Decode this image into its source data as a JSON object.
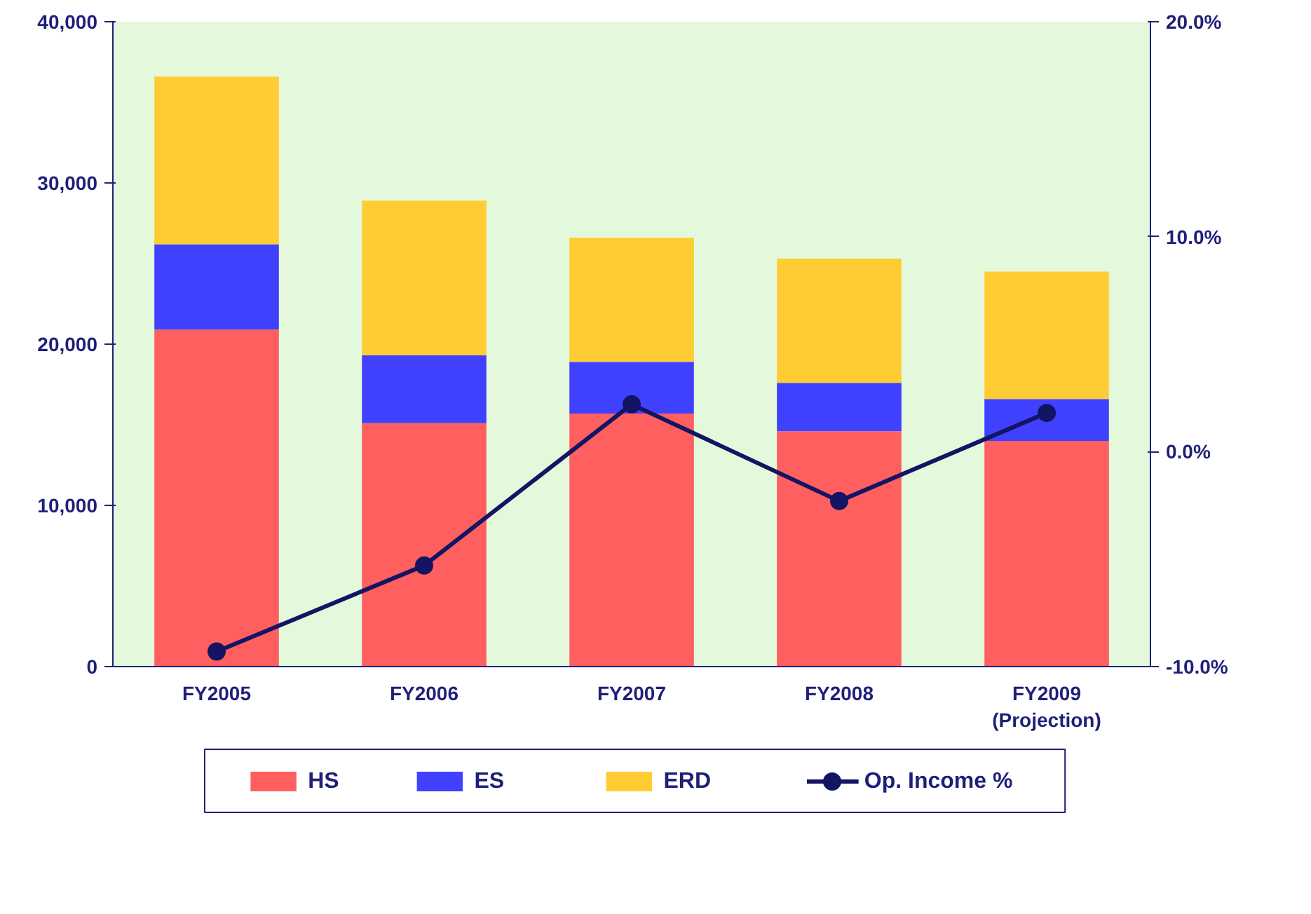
{
  "chart_data": {
    "type": "bar",
    "stacked": true,
    "categories": [
      "FY2005",
      "FY2006",
      "FY2007",
      "FY2008",
      "FY2009\n(Projection)"
    ],
    "series": [
      {
        "name": "HS",
        "color": "#ff5f5f",
        "values": [
          20900,
          15100,
          15700,
          14600,
          14000
        ]
      },
      {
        "name": "ES",
        "color": "#4040ff",
        "values": [
          5300,
          4200,
          3200,
          3000,
          2600
        ]
      },
      {
        "name": "ERD",
        "color": "#ffcc33",
        "values": [
          10400,
          9600,
          7700,
          7700,
          7900
        ]
      },
      {
        "name": "Op. Income %",
        "type": "line",
        "axis": "y2",
        "color": "#141464",
        "marker": "circle",
        "values": [
          -9.3,
          -5.3,
          2.2,
          -2.3,
          1.8
        ]
      }
    ],
    "ylim": [
      0,
      40000
    ],
    "yticks": [
      0,
      {
        "value": 10000,
        "label": "10,000"
      },
      {
        "value": 20000,
        "label": "20,000"
      },
      {
        "value": 30000,
        "label": "30,000"
      },
      {
        "value": 40000,
        "label": "40,000"
      }
    ],
    "y2lim": [
      -10,
      20
    ],
    "y2ticks": [
      {
        "value": -10,
        "label": "-10.0%"
      },
      {
        "value": 0,
        "label": "0.0%"
      },
      {
        "value": 10,
        "label": "10.0%"
      },
      {
        "value": 20,
        "label": "20.0%"
      }
    ],
    "grid": false,
    "legend": "bottom"
  }
}
